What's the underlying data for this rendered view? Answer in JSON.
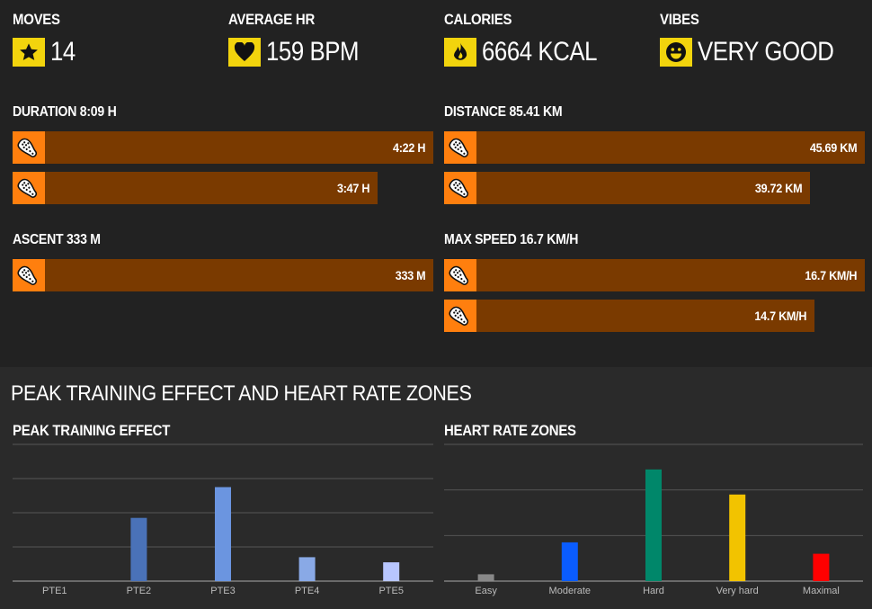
{
  "stats": [
    {
      "label": "MOVES",
      "value": "14",
      "icon": "star-icon"
    },
    {
      "label": "AVERAGE HR",
      "value": "159 BPM",
      "icon": "heart-icon"
    },
    {
      "label": "CALORIES",
      "value": "6664 KCAL",
      "icon": "flame-icon"
    },
    {
      "label": "VIBES",
      "value": "VERY GOOD",
      "icon": "smiley-icon"
    }
  ],
  "groups": {
    "duration": {
      "title": "DURATION 8:09 H",
      "bars": [
        {
          "value": "4:22 H",
          "fraction": 1.0
        },
        {
          "value": "3:47 H",
          "fraction": 0.867
        }
      ]
    },
    "distance": {
      "title": "DISTANCE 85.41 KM",
      "bars": [
        {
          "value": "45.69 KM",
          "fraction": 1.0
        },
        {
          "value": "39.72 KM",
          "fraction": 0.869
        }
      ]
    },
    "ascent": {
      "title": "ASCENT 333 M",
      "bars": [
        {
          "value": "333 M",
          "fraction": 1.0
        }
      ]
    },
    "max_speed": {
      "title": "MAX SPEED 16.7 KM/H",
      "bars": [
        {
          "value": "16.7 KM/H",
          "fraction": 1.0
        },
        {
          "value": "14.7 KM/H",
          "fraction": 0.88
        }
      ]
    }
  },
  "colors": {
    "bar_fill": "#7a3a00",
    "shoe_box": "#ff7f0e",
    "icon_box": "#f2d40d"
  },
  "section_title": "PEAK TRAINING EFFECT AND HEART RATE ZONES",
  "chart_data": [
    {
      "type": "bar",
      "title": "PEAK TRAINING EFFECT",
      "categories": [
        "PTE1",
        "PTE2",
        "PTE3",
        "PTE4",
        "PTE5"
      ],
      "values": [
        0,
        1.85,
        2.75,
        0.7,
        0.55
      ],
      "colors": [
        "#3f6ab0",
        "#4a72b8",
        "#6b95e0",
        "#89a9e6",
        "#b8c6ff"
      ],
      "ylim": [
        0,
        4
      ],
      "grid": true
    },
    {
      "type": "bar",
      "title": "HEART RATE ZONES",
      "categories": [
        "Easy",
        "Moderate",
        "Hard",
        "Very hard",
        "Maximal"
      ],
      "values": [
        0.15,
        0.85,
        2.45,
        1.9,
        0.6
      ],
      "colors": [
        "#888888",
        "#0a5cff",
        "#00876a",
        "#f2c300",
        "#ff0000"
      ],
      "ylim": [
        0,
        3
      ],
      "grid": true
    }
  ]
}
